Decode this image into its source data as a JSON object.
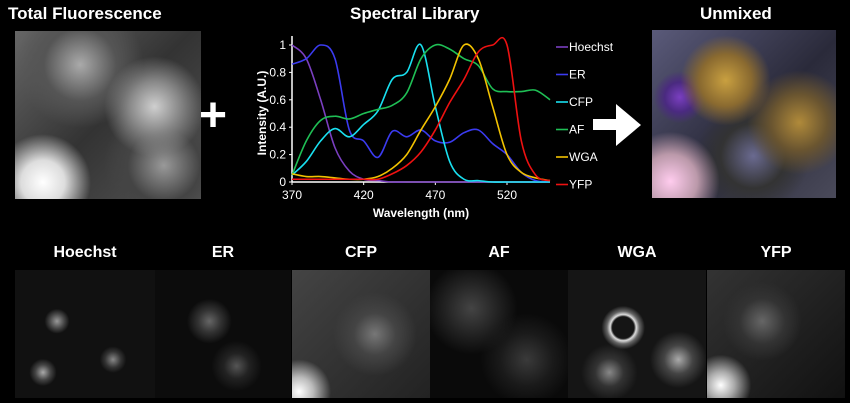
{
  "titles": {
    "total": "Total Fluorescence",
    "library": "Spectral Library",
    "unmixed": "Unmixed"
  },
  "operators": {
    "plus": "+"
  },
  "panels": [
    {
      "label": "Hoechst"
    },
    {
      "label": "ER"
    },
    {
      "label": "CFP"
    },
    {
      "label": "AF"
    },
    {
      "label": "WGA"
    },
    {
      "label": "YFP"
    }
  ],
  "chart_data": {
    "type": "line",
    "title": "Spectral Library",
    "xlabel": "Wavelength (nm)",
    "ylabel": "Intensity (A.U.)",
    "xlim": [
      370,
      550
    ],
    "ylim": [
      0,
      1.05
    ],
    "xticks": [
      "370",
      "420",
      "470",
      "520"
    ],
    "yticks": [
      "0",
      "0.2",
      "0.4",
      "0.6",
      "0.8",
      "1"
    ],
    "legend_position": "right",
    "x": [
      370,
      380,
      390,
      400,
      410,
      420,
      430,
      440,
      450,
      460,
      470,
      480,
      490,
      500,
      510,
      520,
      530,
      540,
      550
    ],
    "series": [
      {
        "name": "Hoechst",
        "color": "#7a3fc0",
        "values": [
          1.0,
          0.9,
          0.6,
          0.25,
          0.08,
          0.02,
          0.01,
          0,
          0,
          0,
          0,
          0,
          0,
          0,
          0,
          0,
          0,
          0,
          0
        ]
      },
      {
        "name": "ER",
        "color": "#3b3bf0",
        "values": [
          0.86,
          0.9,
          1.0,
          0.9,
          0.38,
          0.3,
          0.18,
          0.37,
          0.33,
          0.38,
          0.3,
          0.29,
          0.36,
          0.38,
          0.28,
          0.2,
          0.07,
          0.01,
          0
        ]
      },
      {
        "name": "CFP",
        "color": "#19e0f0",
        "values": [
          0.05,
          0.15,
          0.3,
          0.39,
          0.33,
          0.42,
          0.52,
          0.75,
          0.8,
          1.0,
          0.55,
          0.15,
          0.02,
          0.01,
          0,
          0,
          0,
          0,
          0
        ]
      },
      {
        "name": "AF",
        "color": "#1fbf55",
        "values": [
          0.05,
          0.3,
          0.45,
          0.48,
          0.46,
          0.5,
          0.53,
          0.56,
          0.65,
          0.9,
          1.0,
          0.97,
          0.9,
          0.85,
          0.68,
          0.66,
          0.66,
          0.67,
          0.6
        ]
      },
      {
        "name": "WGA",
        "color": "#f2c200",
        "values": [
          0.06,
          0.04,
          0.04,
          0.03,
          0.02,
          0.02,
          0.04,
          0.1,
          0.2,
          0.38,
          0.55,
          0.75,
          1.0,
          0.9,
          0.55,
          0.2,
          0.07,
          0.03,
          0.01
        ]
      },
      {
        "name": "YFP",
        "color": "#ee1111",
        "values": [
          0.02,
          0.02,
          0.02,
          0.02,
          0.02,
          0.02,
          0.02,
          0.06,
          0.12,
          0.22,
          0.38,
          0.58,
          0.75,
          0.95,
          1.0,
          1.0,
          0.3,
          0.05,
          0.01
        ]
      }
    ]
  }
}
